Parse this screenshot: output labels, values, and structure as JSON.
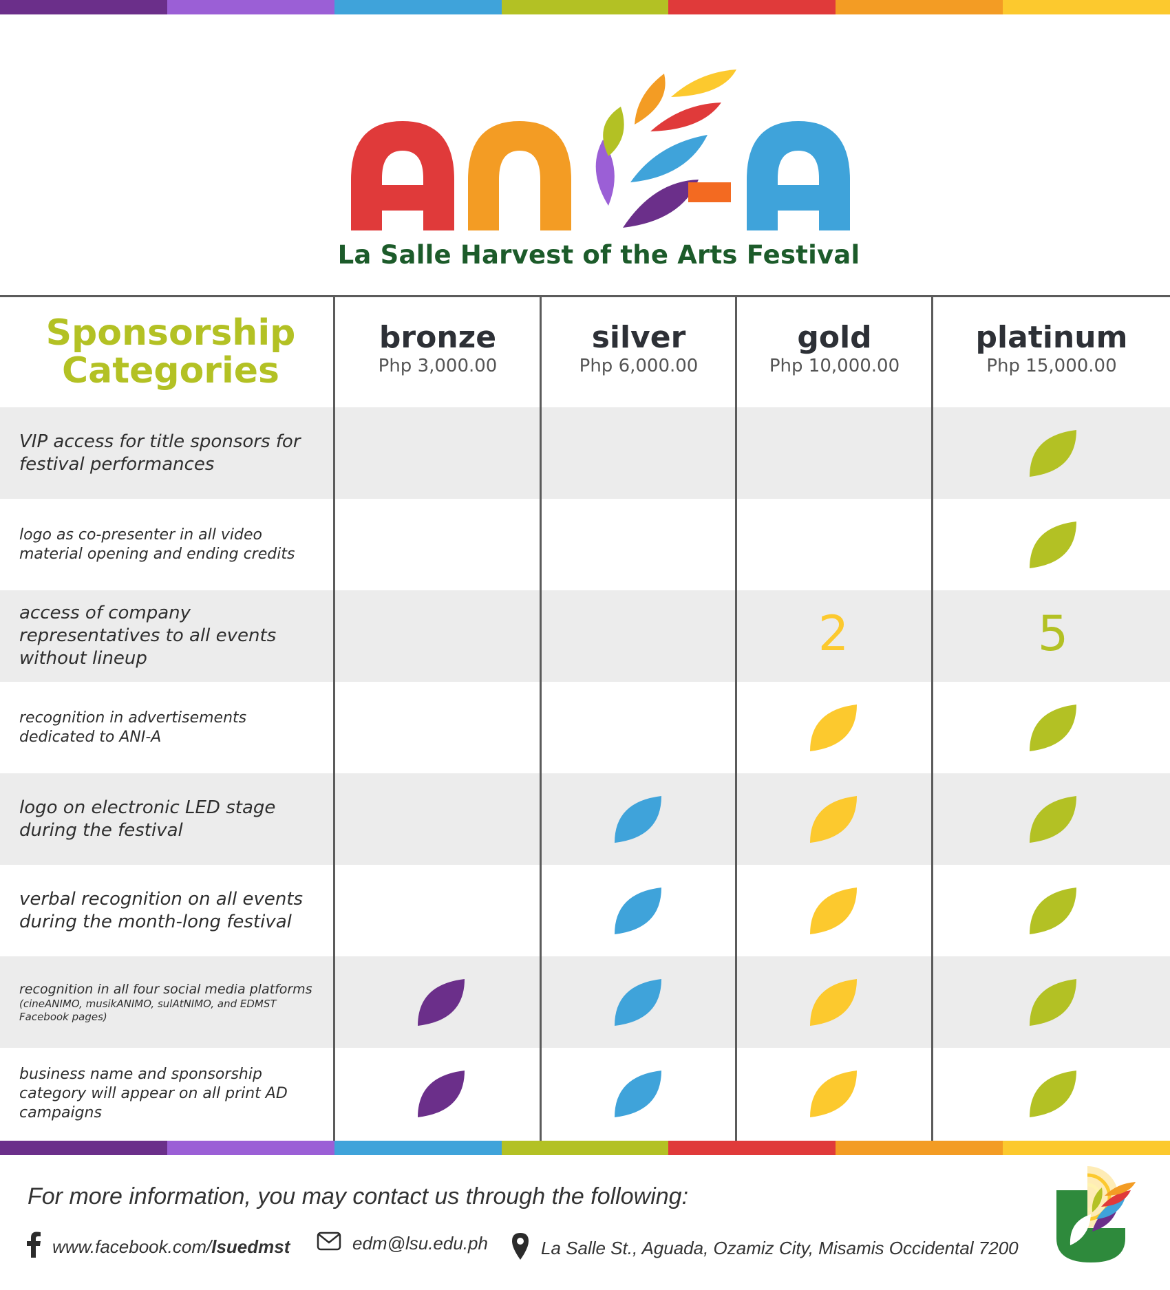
{
  "colors": {
    "purple_dark": "#6b2f8a",
    "purple": "#9b5fd6",
    "blue": "#3fa3da",
    "green": "#b3c124",
    "red": "#e03a3a",
    "orange": "#f39c24",
    "yellow": "#fcc92e",
    "dark_green": "#1c5b2a",
    "leaf_bronze": "#6b2f8a",
    "leaf_silver": "#3fa3da",
    "leaf_gold": "#fcc92e",
    "leaf_platinum": "#b3c124"
  },
  "logo": {
    "letters": [
      "A",
      "N",
      "-",
      "A"
    ],
    "subtitle": "La Salle Harvest of the Arts Festival"
  },
  "table": {
    "title_line1": "Sponsorship",
    "title_line2": "Categories",
    "tiers": [
      {
        "name": "bronze",
        "price": "Php 3,000.00"
      },
      {
        "name": "silver",
        "price": "Php 6,000.00"
      },
      {
        "name": "gold",
        "price": "Php 10,000.00"
      },
      {
        "name": "platinum",
        "price": "Php 15,000.00"
      }
    ],
    "rows": [
      {
        "label": "VIP access for title sponsors for festival performances",
        "note": "",
        "bronze": "",
        "silver": "",
        "gold": "",
        "platinum": "leaf"
      },
      {
        "label": "logo as co-presenter in all video material opening and ending credits",
        "note": "",
        "bronze": "",
        "silver": "",
        "gold": "",
        "platinum": "leaf"
      },
      {
        "label": "access of company representatives to all events without lineup",
        "note": "",
        "bronze": "",
        "silver": "",
        "gold": "2",
        "platinum": "5"
      },
      {
        "label": "recognition in advertisements dedicated to ANI-A",
        "note": "",
        "bronze": "",
        "silver": "",
        "gold": "leaf",
        "platinum": "leaf"
      },
      {
        "label": "logo on electronic LED stage during the festival",
        "note": "",
        "bronze": "",
        "silver": "leaf",
        "gold": "leaf",
        "platinum": "leaf"
      },
      {
        "label": "verbal recognition on all events during the month-long festival",
        "note": "",
        "bronze": "",
        "silver": "leaf",
        "gold": "leaf",
        "platinum": "leaf"
      },
      {
        "label": "recognition in all four social media platforms",
        "note": "(cineANIMO, musikANIMO, sulAtNIMO, and EDMST Facebook pages)",
        "bronze": "leaf",
        "silver": "leaf",
        "gold": "leaf",
        "platinum": "leaf"
      },
      {
        "label": "business name and sponsorship category will appear on all print AD campaigns",
        "note": "",
        "bronze": "leaf",
        "silver": "leaf",
        "gold": "leaf",
        "platinum": "leaf"
      }
    ]
  },
  "footer": {
    "intro": "For more information, you may contact us through the following:",
    "facebook_prefix": "www.facebook.com/",
    "facebook_handle": "lsuedmst",
    "email": "edm@lsu.edu.ph",
    "address": "La Salle St., Aguada, Ozamiz City, Misamis Occidental 7200",
    "icons": [
      "facebook-icon",
      "mail-icon",
      "location-pin-icon"
    ]
  }
}
